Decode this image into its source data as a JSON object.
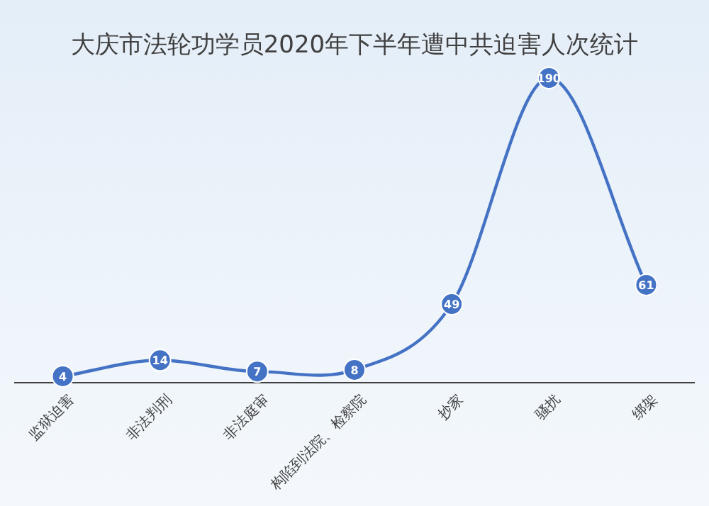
{
  "chart_data": {
    "type": "line",
    "title": "大庆市法轮功学员2020年下半年遭中共迫害人次统计",
    "categories": [
      "监狱迫害",
      "非法判刑",
      "非法庭审",
      "构陷到法院、检察院",
      "抄家",
      "骚扰",
      "绑架"
    ],
    "values": [
      4,
      14,
      7,
      8,
      49,
      190,
      61
    ],
    "color": "#4472c4",
    "marker": "circle",
    "data_labels": true
  }
}
